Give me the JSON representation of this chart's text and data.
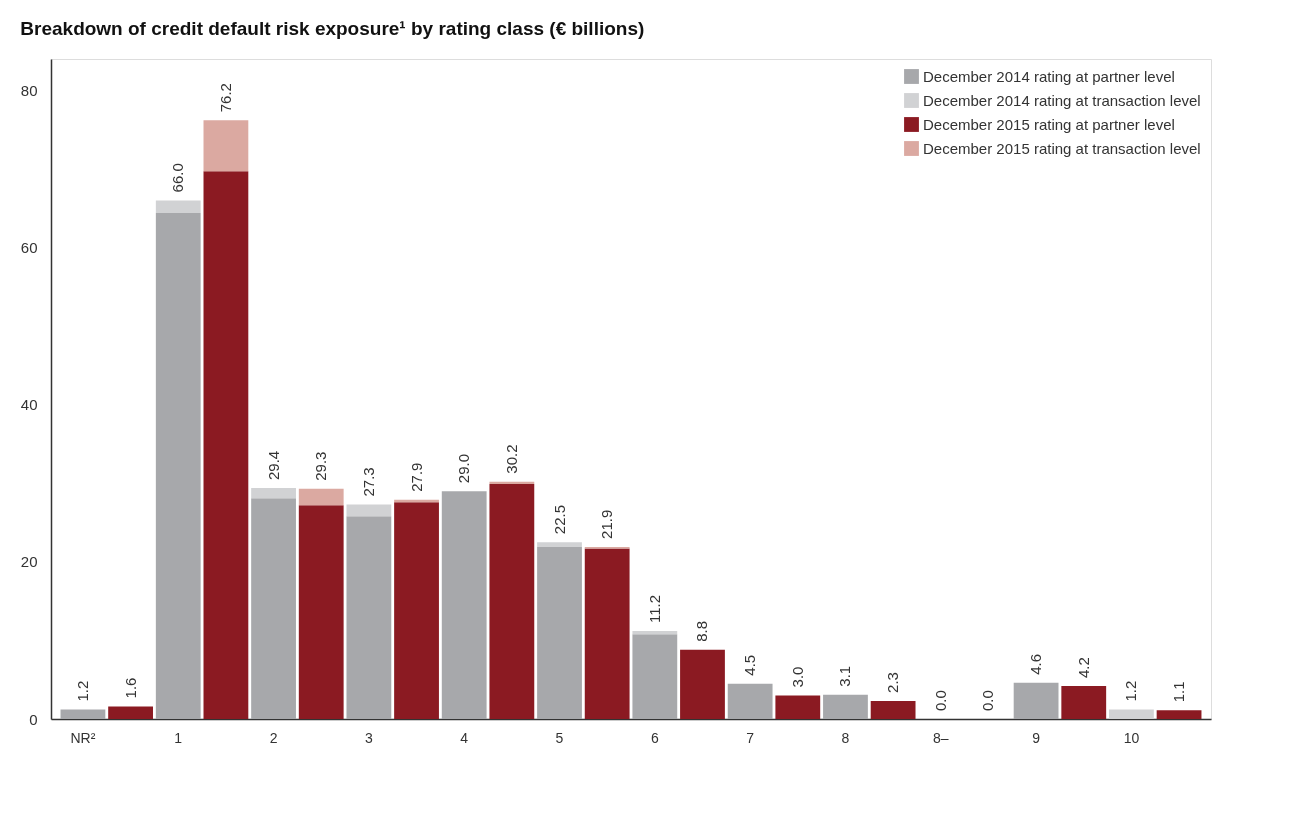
{
  "chart_data": {
    "type": "bar",
    "stacked": true,
    "title": "Breakdown of credit default risk exposure¹ by rating class (€ billions)",
    "categories": [
      "NR²",
      null,
      "1",
      null,
      "2",
      null,
      "3",
      null,
      "4",
      null,
      "5",
      null,
      "6",
      null,
      "7",
      null,
      "8",
      null,
      "8–",
      null,
      "9",
      null,
      "10",
      null
    ],
    "series": [
      {
        "name": "December 2014 rating at partner level",
        "color": "#a7a8ab",
        "values": [
          1.2,
          null,
          64.4,
          null,
          28.1,
          null,
          25.8,
          null,
          29.0,
          null,
          21.9,
          null,
          10.8,
          null,
          4.5,
          null,
          3.1,
          null,
          0.0,
          null,
          4.6,
          null,
          0.0,
          null
        ]
      },
      {
        "name": "December 2014 rating at transaction level",
        "color": "#d1d2d4",
        "values": [
          0.0,
          null,
          1.6,
          null,
          1.3,
          null,
          1.5,
          null,
          0.0,
          null,
          0.6,
          null,
          0.4,
          null,
          0.0,
          null,
          0.0,
          null,
          0.0,
          null,
          0.0,
          null,
          1.2,
          null
        ]
      },
      {
        "name": "December 2015 rating at partner level",
        "color": "#8b1a22",
        "values": [
          null,
          1.6,
          null,
          69.7,
          null,
          27.2,
          null,
          27.6,
          null,
          29.9,
          null,
          21.7,
          null,
          8.8,
          null,
          3.0,
          null,
          2.3,
          null,
          0.0,
          null,
          4.2,
          null,
          1.1
        ]
      },
      {
        "name": "December 2015 rating at transaction level",
        "color": "#dba9a1",
        "values": [
          null,
          0.0,
          null,
          6.5,
          null,
          2.1,
          null,
          0.3,
          null,
          0.3,
          null,
          0.2,
          null,
          0.0,
          null,
          0.0,
          null,
          0.0,
          null,
          0.0,
          null,
          0.0,
          null,
          0.0
        ]
      }
    ],
    "totals": [
      "1.2",
      "1.6",
      "66.0",
      "76.2",
      "29.4",
      "29.3",
      "27.3",
      "27.9",
      "29.0",
      "30.2",
      "22.5",
      "21.9",
      "11.2",
      "8.8",
      "4.5",
      "3.0",
      "3.1",
      "2.3",
      "0.0",
      "0.0",
      "4.6",
      "4.2",
      "1.2",
      "1.1"
    ],
    "ylim": [
      0,
      84
    ],
    "yticks": [
      0,
      20,
      40,
      60,
      80
    ],
    "grid": false,
    "legend": "top right"
  }
}
